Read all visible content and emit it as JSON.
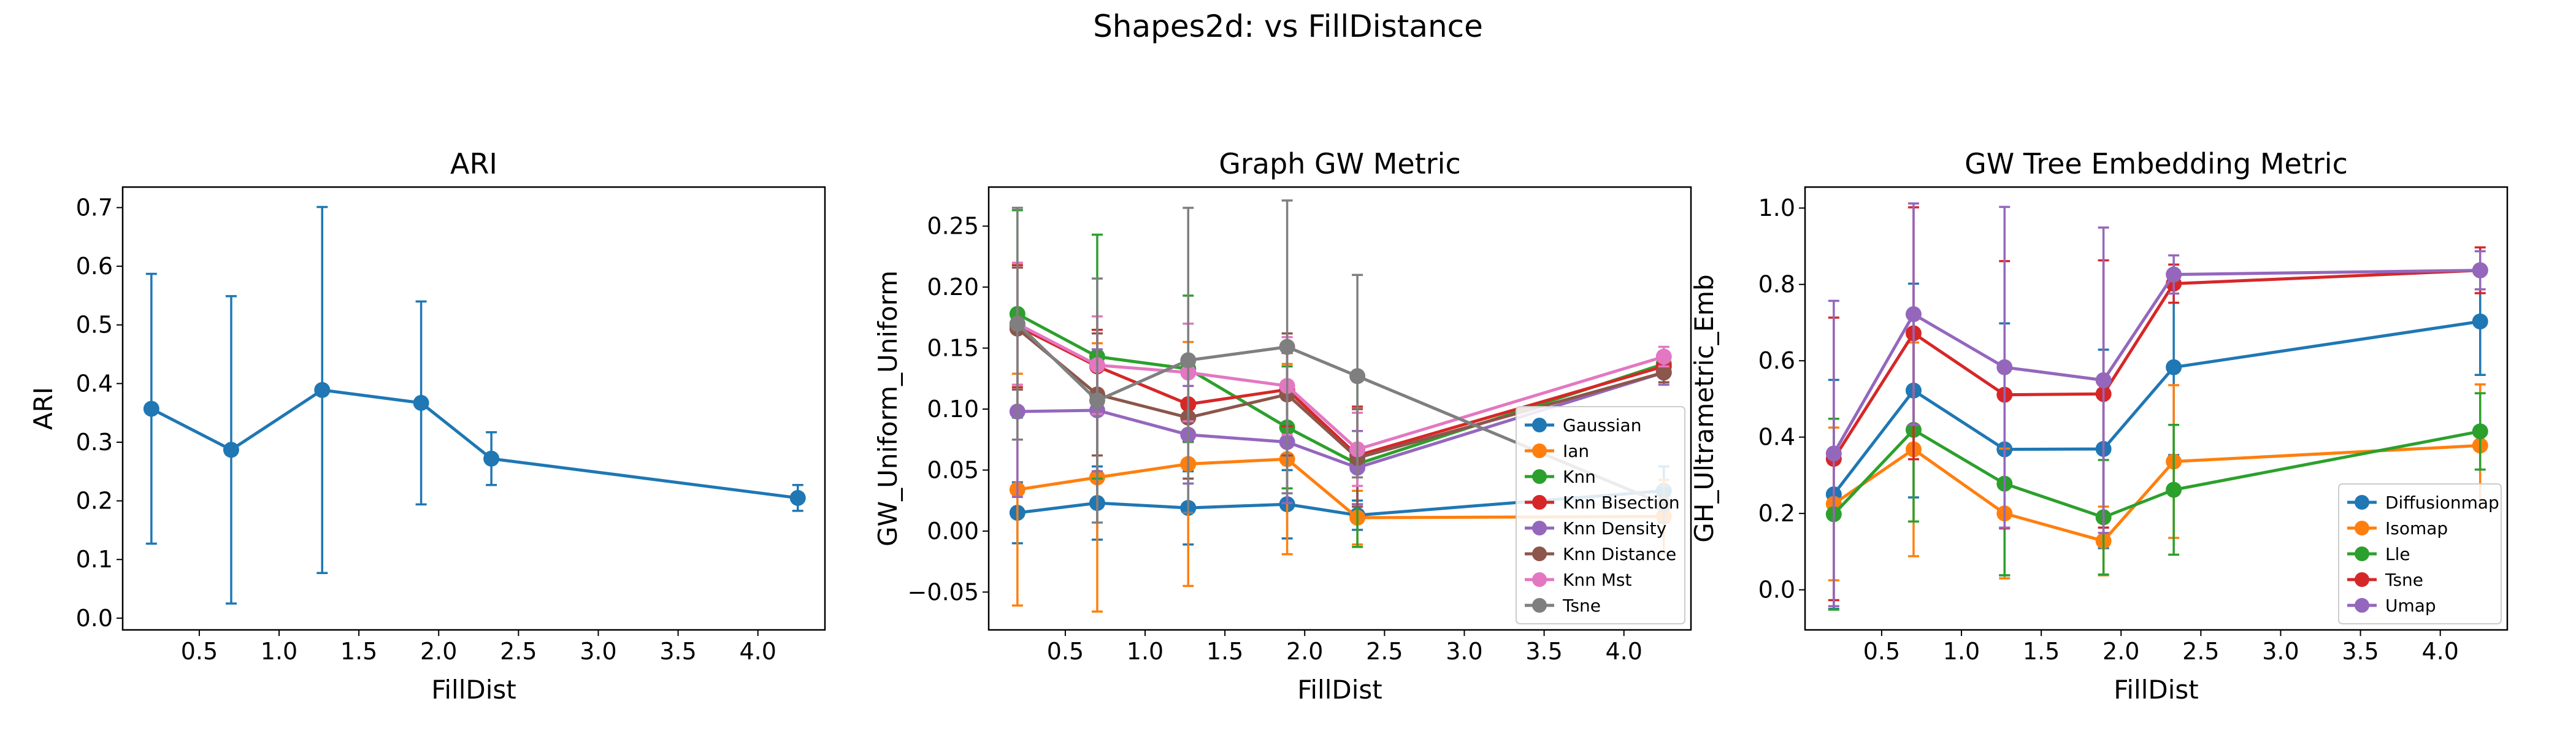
{
  "suptitle": "Shapes2d: vs FillDistance",
  "chart_data": [
    {
      "type": "line",
      "title": "ARI",
      "xlabel": "FillDist",
      "ylabel": "ARI",
      "xlim": [
        0.02,
        4.42
      ],
      "ylim": [
        -0.02,
        0.735
      ],
      "xticks": [
        0.5,
        1.0,
        1.5,
        2.0,
        2.5,
        3.0,
        3.5,
        4.0
      ],
      "xtick_labels": [
        "0.5",
        "1.0",
        "1.5",
        "2.0",
        "2.5",
        "3.0",
        "3.5",
        "4.0"
      ],
      "yticks": [
        0.0,
        0.1,
        0.2,
        0.3,
        0.4,
        0.5,
        0.6,
        0.7
      ],
      "ytick_labels": [
        "0.0",
        "0.1",
        "0.2",
        "0.3",
        "0.4",
        "0.5",
        "0.6",
        "0.7"
      ],
      "legend": null,
      "x": [
        0.2,
        0.7,
        1.27,
        1.89,
        2.33,
        4.25
      ],
      "series": [
        {
          "color": "#1f77b4",
          "values": [
            0.357,
            0.287,
            0.389,
            0.367,
            0.272,
            0.205
          ],
          "err": [
            0.23,
            0.262,
            0.312,
            0.173,
            0.045,
            0.022
          ]
        }
      ]
    },
    {
      "type": "line",
      "title": "Graph GW Metric",
      "xlabel": "FillDist",
      "ylabel": "GW_Uniform_Uniform",
      "xlim": [
        0.02,
        4.42
      ],
      "ylim": [
        -0.081,
        0.282
      ],
      "xticks": [
        0.5,
        1.0,
        1.5,
        2.0,
        2.5,
        3.0,
        3.5,
        4.0
      ],
      "xtick_labels": [
        "0.5",
        "1.0",
        "1.5",
        "2.0",
        "2.5",
        "3.0",
        "3.5",
        "4.0"
      ],
      "yticks": [
        -0.05,
        0.0,
        0.05,
        0.1,
        0.15,
        0.2,
        0.25
      ],
      "ytick_labels": [
        "−0.05",
        "0.00",
        "0.05",
        "0.10",
        "0.15",
        "0.20",
        "0.25"
      ],
      "legend": "lower-right",
      "x": [
        0.2,
        0.7,
        1.27,
        1.89,
        2.33,
        4.25
      ],
      "series": [
        {
          "name": "Gaussian",
          "color": "#1f77b4",
          "values": [
            0.015,
            0.023,
            0.019,
            0.022,
            0.013,
            0.033
          ],
          "err": [
            0.025,
            0.03,
            0.03,
            0.028,
            0.012,
            0.02
          ]
        },
        {
          "name": "Ian",
          "color": "#ff7f0e",
          "values": [
            0.034,
            0.044,
            0.055,
            0.059,
            0.011,
            0.012
          ],
          "err": [
            0.095,
            0.11,
            0.1,
            0.078,
            0.022,
            0.03
          ]
        },
        {
          "name": "Knn",
          "color": "#2ca02c",
          "values": [
            0.178,
            0.143,
            0.133,
            0.085,
            0.055,
            0.137
          ],
          "err": [
            0.085,
            0.1,
            0.06,
            0.05,
            0.068,
            0.01
          ]
        },
        {
          "name": "Knn Bisection",
          "color": "#d62728",
          "values": [
            0.168,
            0.135,
            0.104,
            0.116,
            0.062,
            0.135
          ],
          "err": [
            0.05,
            0.03,
            0.03,
            0.03,
            0.04,
            0.008
          ]
        },
        {
          "name": "Knn Density",
          "color": "#9467bd",
          "values": [
            0.098,
            0.099,
            0.079,
            0.073,
            0.052,
            0.13
          ],
          "err": [
            0.07,
            0.05,
            0.04,
            0.05,
            0.03,
            0.01
          ]
        },
        {
          "name": "Knn Distance",
          "color": "#8c564b",
          "values": [
            0.166,
            0.112,
            0.093,
            0.112,
            0.06,
            0.13
          ],
          "err": [
            0.05,
            0.05,
            0.05,
            0.05,
            0.04,
            0.008
          ]
        },
        {
          "name": "Knn Mst",
          "color": "#e377c2",
          "values": [
            0.17,
            0.136,
            0.13,
            0.119,
            0.067,
            0.143
          ],
          "err": [
            0.05,
            0.04,
            0.04,
            0.04,
            0.03,
            0.008
          ]
        },
        {
          "name": "Tsne",
          "color": "#7f7f7f",
          "values": [
            0.17,
            0.107,
            0.14,
            0.151,
            0.127,
            0.022
          ],
          "err": [
            0.095,
            0.1,
            0.125,
            0.12,
            0.083,
            0.015
          ]
        }
      ]
    },
    {
      "type": "line",
      "title": "GW Tree Embedding Metric",
      "xlabel": "FillDist",
      "ylabel": "GH_Ultrametric_Emb",
      "xlim": [
        0.02,
        4.42
      ],
      "ylim": [
        -0.105,
        1.055
      ],
      "xticks": [
        0.5,
        1.0,
        1.5,
        2.0,
        2.5,
        3.0,
        3.5,
        4.0
      ],
      "xtick_labels": [
        "0.5",
        "1.0",
        "1.5",
        "2.0",
        "2.5",
        "3.0",
        "3.5",
        "4.0"
      ],
      "yticks": [
        0.0,
        0.2,
        0.4,
        0.6,
        0.8,
        1.0
      ],
      "ytick_labels": [
        "0.0",
        "0.2",
        "0.4",
        "0.6",
        "0.8",
        "1.0"
      ],
      "legend": "lower-right",
      "x": [
        0.2,
        0.7,
        1.27,
        1.89,
        2.33,
        4.25
      ],
      "series": [
        {
          "name": "Diffusionmap",
          "color": "#1f77b4",
          "values": [
            0.25,
            0.522,
            0.368,
            0.369,
            0.583,
            0.703
          ],
          "err": [
            0.3,
            0.28,
            0.33,
            0.26,
            0.23,
            0.14
          ]
        },
        {
          "name": "Isomap",
          "color": "#ff7f0e",
          "values": [
            0.225,
            0.368,
            0.2,
            0.128,
            0.336,
            0.378
          ],
          "err": [
            0.2,
            0.28,
            0.17,
            0.09,
            0.2,
            0.16
          ]
        },
        {
          "name": "Lle",
          "color": "#2ca02c",
          "values": [
            0.198,
            0.419,
            0.278,
            0.19,
            0.262,
            0.415
          ],
          "err": [
            0.25,
            0.24,
            0.24,
            0.15,
            0.17,
            0.1
          ]
        },
        {
          "name": "Tsne",
          "color": "#d62728",
          "values": [
            0.343,
            0.672,
            0.511,
            0.513,
            0.802,
            0.837
          ],
          "err": [
            0.37,
            0.33,
            0.35,
            0.35,
            0.05,
            0.06
          ]
        },
        {
          "name": "Umap",
          "color": "#9467bd",
          "values": [
            0.357,
            0.722,
            0.583,
            0.549,
            0.826,
            0.837
          ],
          "err": [
            0.4,
            0.29,
            0.42,
            0.4,
            0.05,
            0.05
          ]
        }
      ]
    }
  ]
}
